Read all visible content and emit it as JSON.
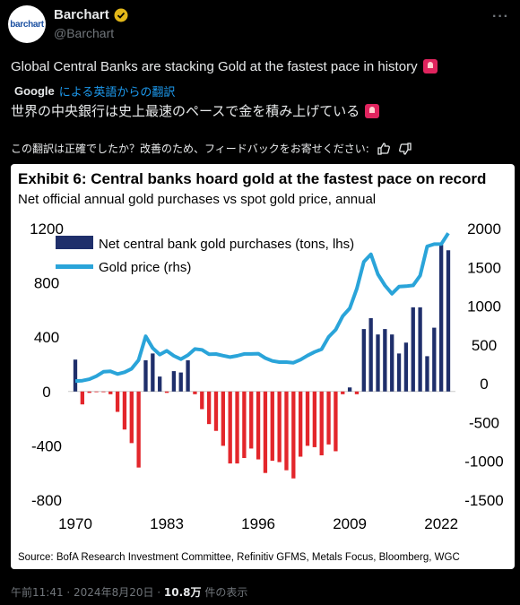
{
  "account": {
    "logo_text": "barchart",
    "name": "Barchart",
    "handle": "@Barchart"
  },
  "tweet": {
    "text": "Global Central Banks are stacking Gold at the fastest pace in history",
    "translator_brand": "Google",
    "translator_text": "による英語からの翻訳",
    "translated_text": "世界の中央銀行は史上最速のペースで金を積み上げている",
    "feedback_text": "この翻訳は正確でしたか？改善のため、フィードバックをお寄せください:"
  },
  "footer": {
    "time": "午前11:41 · 2024年8月20日 · ",
    "views": "10.8万",
    "views_suffix": " 件の表示"
  },
  "colors": {
    "bar_pos": "#1f2f6b",
    "bar_neg": "#e3262b",
    "line": "#2aa4d9",
    "accent": "#1d9bf0"
  },
  "chart_data": {
    "type": "bar",
    "title": "Exhibit 6: Central banks hoard gold at the fastest pace on record",
    "subtitle": "Net official annual gold purchases vs spot gold price, annual",
    "source": "Source: BofA Research Investment Committee, Refinitiv GFMS, Metals Focus, Bloomberg, WGC",
    "x_ticks": [
      "1970",
      "1983",
      "1996",
      "2009",
      "2022"
    ],
    "y_left_ticks": [
      "1200",
      "800",
      "400",
      "0",
      "-400",
      "-800"
    ],
    "y_left_range": [
      -800,
      1200
    ],
    "y_right_ticks": [
      "2000",
      "1500",
      "1000",
      "500",
      "0",
      "-500",
      "-1000",
      "-1500"
    ],
    "y_right_range": [
      -1500,
      2000
    ],
    "legend": {
      "bars": "Net central bank gold purchases (tons, lhs)",
      "line": "Gold price (rhs)"
    },
    "years": [
      1970,
      1971,
      1972,
      1973,
      1974,
      1975,
      1976,
      1977,
      1978,
      1979,
      1980,
      1981,
      1982,
      1983,
      1984,
      1985,
      1986,
      1987,
      1988,
      1989,
      1990,
      1991,
      1992,
      1993,
      1994,
      1995,
      1996,
      1997,
      1998,
      1999,
      2000,
      2001,
      2002,
      2003,
      2004,
      2005,
      2006,
      2007,
      2008,
      2009,
      2010,
      2011,
      2012,
      2013,
      2014,
      2015,
      2016,
      2017,
      2018,
      2019,
      2020,
      2021,
      2022,
      2023
    ],
    "series": [
      {
        "name": "Net central bank gold purchases (tons, lhs)",
        "values": [
          235,
          -95,
          -10,
          -5,
          -5,
          -20,
          -150,
          -280,
          -380,
          -560,
          230,
          280,
          110,
          -10,
          150,
          140,
          230,
          -20,
          -130,
          -240,
          -290,
          -400,
          -530,
          -530,
          -490,
          -420,
          -500,
          -600,
          -510,
          -520,
          -580,
          -640,
          -480,
          -400,
          -410,
          -470,
          -390,
          -440,
          -20,
          30,
          -20,
          460,
          540,
          420,
          460,
          420,
          280,
          360,
          620,
          620,
          260,
          470,
          1080,
          1040
        ]
      },
      {
        "name": "Gold price (rhs)",
        "values": [
          35,
          40,
          58,
          97,
          154,
          160,
          125,
          148,
          193,
          306,
          612,
          460,
          376,
          424,
          360,
          317,
          368,
          447,
          437,
          381,
          383,
          362,
          344,
          360,
          384,
          384,
          387,
          331,
          294,
          279,
          279,
          271,
          310,
          363,
          409,
          445,
          604,
          696,
          872,
          972,
          1225,
          1572,
          1669,
          1411,
          1266,
          1160,
          1251,
          1257,
          1268,
          1393,
          1770,
          1799,
          1800,
          1940
        ]
      }
    ]
  }
}
